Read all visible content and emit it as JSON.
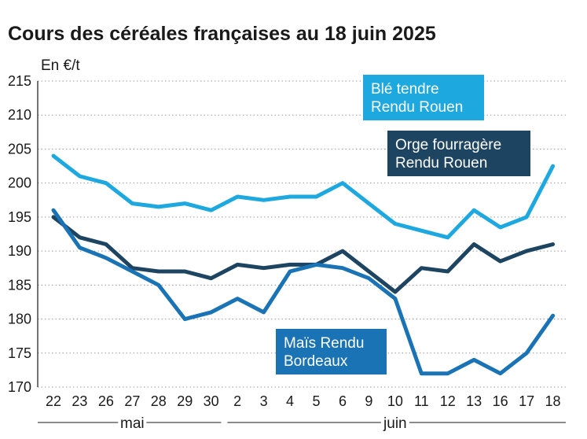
{
  "chart_data": {
    "type": "line",
    "title": "Cours des céréales françaises au 18 juin 2025",
    "ylabel": "En €/t",
    "ylim": [
      170,
      215
    ],
    "yticks": [
      170,
      175,
      180,
      185,
      190,
      195,
      200,
      205,
      210,
      215
    ],
    "grid": "horizontal dotted",
    "categories": [
      "22",
      "23",
      "26",
      "27",
      "28",
      "29",
      "30",
      "2",
      "3",
      "4",
      "5",
      "6",
      "9",
      "10",
      "11",
      "12",
      "13",
      "16",
      "17",
      "18"
    ],
    "months": [
      {
        "label": "mai",
        "from": 0,
        "to": 6
      },
      {
        "label": "juin",
        "from": 7,
        "to": 19
      }
    ],
    "series": [
      {
        "name": "Blé tendre Rendu Rouen",
        "label_lines": [
          "Blé tendre",
          "Rendu Rouen"
        ],
        "color": "#1ea8e0",
        "values": [
          204,
          201,
          200,
          197,
          196.5,
          197,
          196,
          198,
          197.5,
          198,
          198,
          200,
          197,
          194,
          193,
          192,
          196,
          193.5,
          195,
          202.5
        ]
      },
      {
        "name": "Orge fourragère Rendu Rouen",
        "label_lines": [
          "Orge fourragère",
          "Rendu Rouen"
        ],
        "color": "#1d4461",
        "values": [
          195,
          192,
          191,
          187.5,
          187,
          187,
          186,
          188,
          187.5,
          188,
          188,
          190,
          187,
          184,
          187.5,
          187,
          191,
          188.5,
          190,
          191
        ]
      },
      {
        "name": "Maïs Rendu Bordeaux",
        "label_lines": [
          "Maïs Rendu",
          "Bordeaux"
        ],
        "color": "#1a73b5",
        "values": [
          196,
          190.5,
          189,
          187,
          185,
          180,
          181,
          183,
          181,
          187,
          188,
          187.5,
          186,
          183,
          172,
          172,
          174,
          172,
          175,
          180.5
        ]
      }
    ]
  }
}
